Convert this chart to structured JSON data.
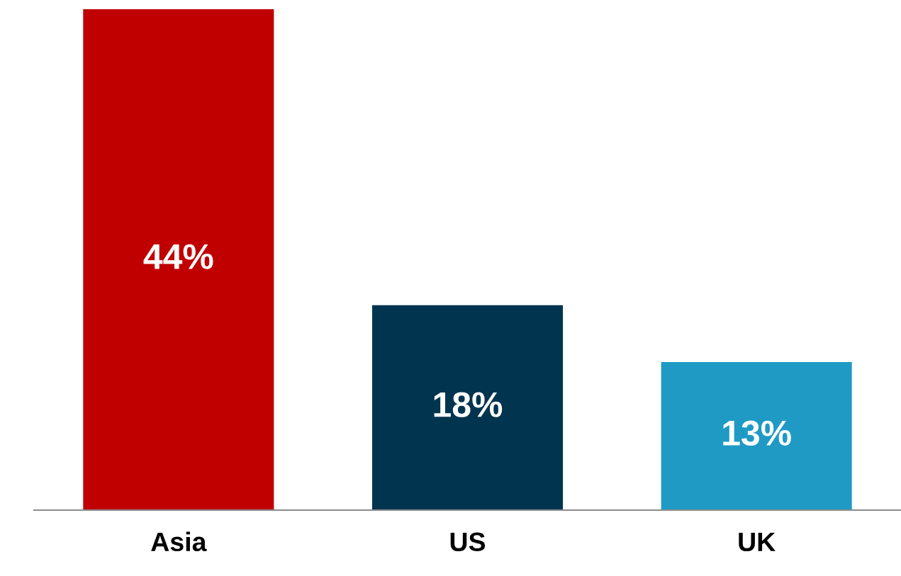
{
  "chart_data": {
    "type": "bar",
    "categories": [
      "Asia",
      "US",
      "UK"
    ],
    "values": [
      44,
      18,
      13
    ],
    "colors": [
      "#c00000",
      "#00344f",
      "#1f9ac4"
    ],
    "value_labels": [
      "44%",
      "18%",
      "13%"
    ],
    "grid": false,
    "legend": false
  }
}
